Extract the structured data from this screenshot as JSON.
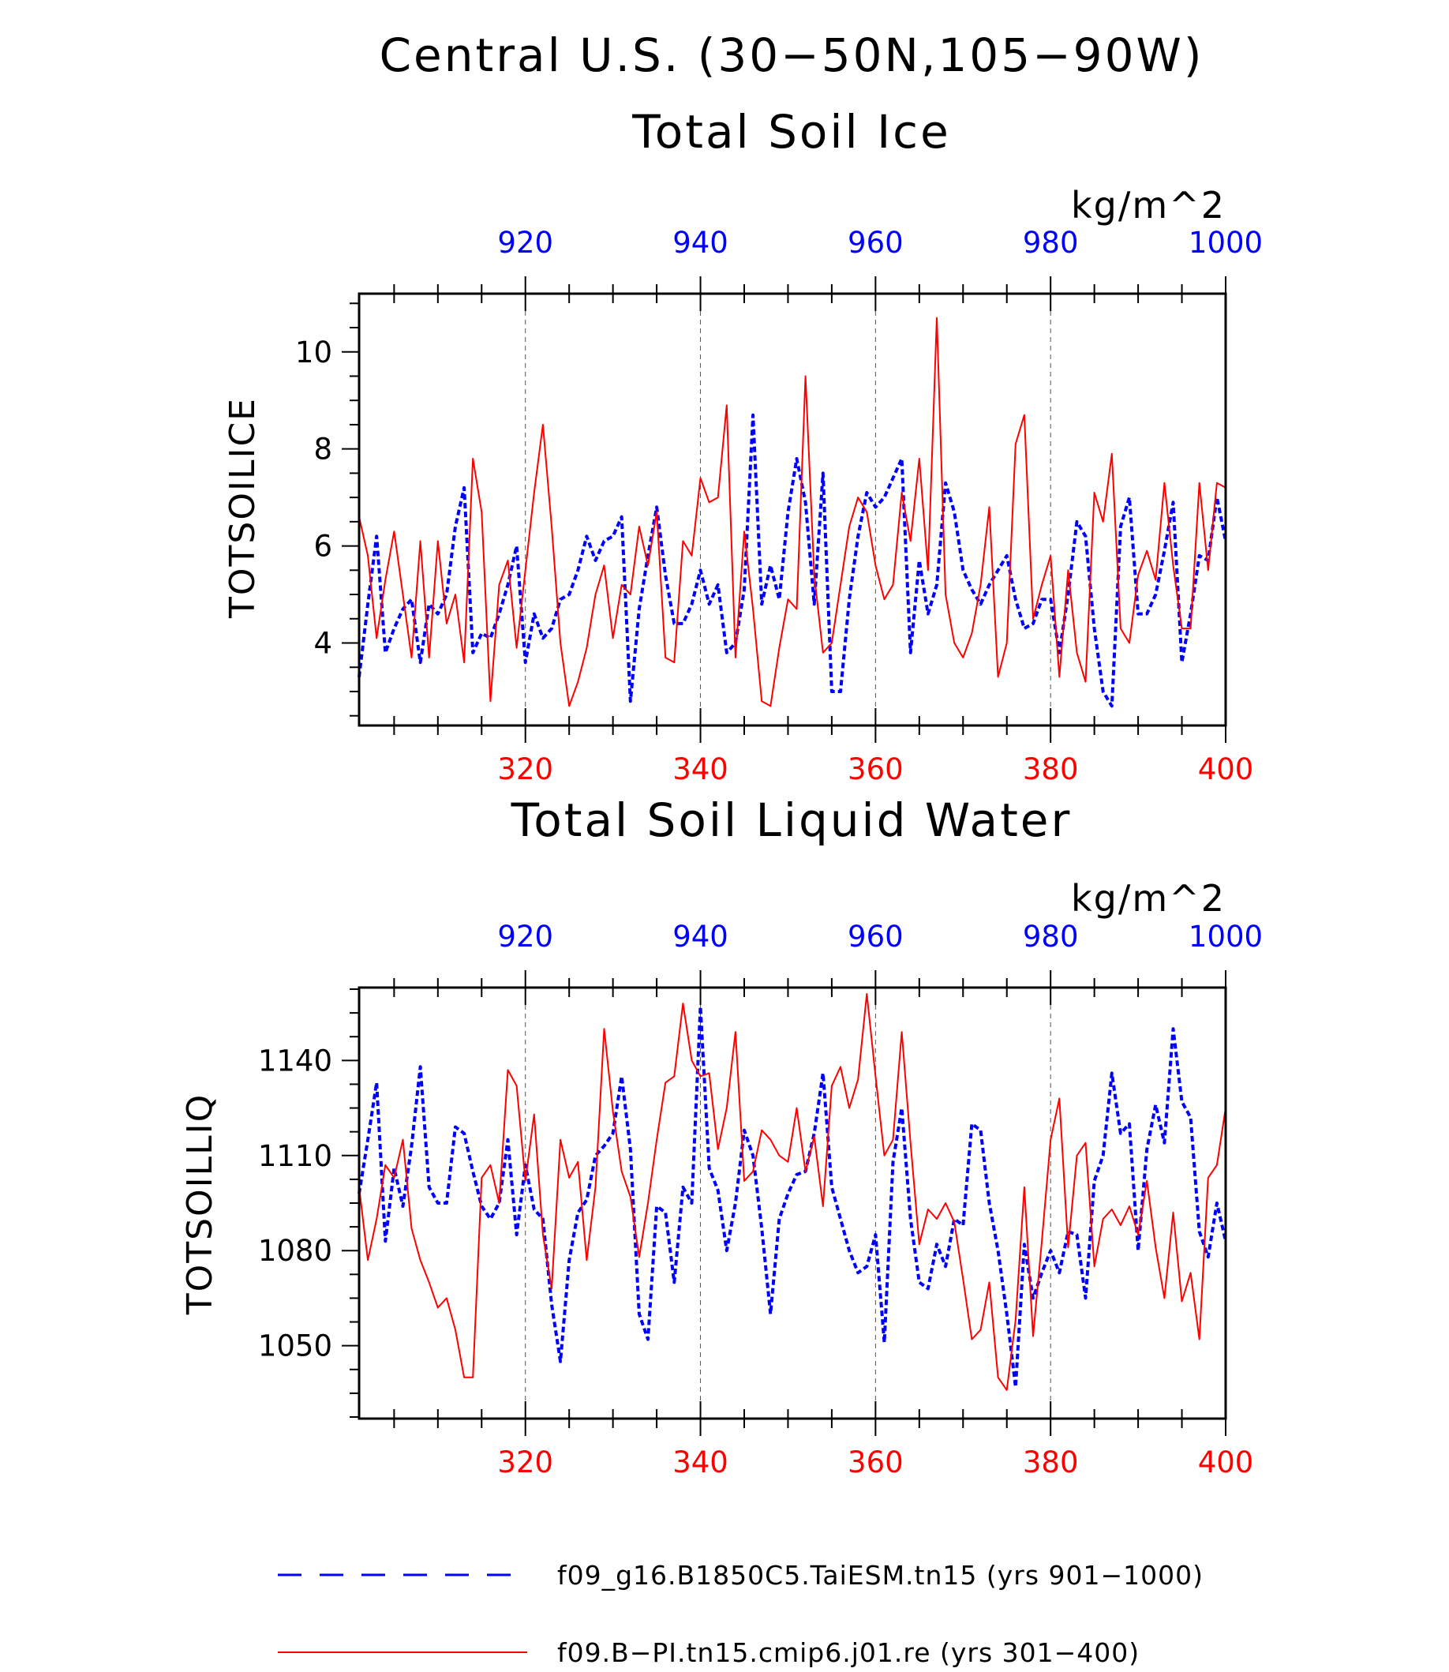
{
  "figure": {
    "title_line1": "Central U.S. (30−50N,105−90W)"
  },
  "legend": {
    "items": [
      {
        "label": "f09_g16.B1850C5.TaiESM.tn15 (yrs 901−1000)",
        "color": "#0000ff",
        "style": "dashed"
      },
      {
        "label": "f09.B−PI.tn15.cmip6.j01.re (yrs 301−400)",
        "color": "#ff0000",
        "style": "solid"
      }
    ]
  },
  "chart_data": [
    {
      "type": "line",
      "title": "Total Soil Ice",
      "ylabel": "TOTSOILICE",
      "units": "kg/m^2",
      "ylim": [
        2.3,
        11.2
      ],
      "yticks": [
        4,
        6,
        8,
        10
      ],
      "x_bottom": {
        "range": [
          301,
          400
        ],
        "ticks": [
          320,
          340,
          360,
          380,
          400
        ],
        "color": "#ff0000"
      },
      "x_top": {
        "range": [
          901,
          1000
        ],
        "ticks": [
          920,
          940,
          960,
          980,
          1000
        ],
        "color": "#0000ff"
      },
      "grid": "vertical dashed",
      "series": [
        {
          "axis": "top",
          "color": "#0000ff",
          "style": "dashed",
          "values": [
            3.3,
            4.8,
            6.2,
            3.8,
            4.3,
            4.7,
            4.9,
            3.6,
            4.8,
            4.6,
            5.0,
            6.4,
            7.2,
            3.8,
            4.2,
            4.1,
            4.6,
            5.2,
            6.0,
            3.6,
            4.6,
            4.1,
            4.3,
            4.9,
            5.0,
            5.5,
            6.2,
            5.7,
            6.1,
            6.2,
            6.6,
            2.8,
            4.7,
            5.8,
            6.8,
            5.4,
            4.4,
            4.4,
            4.8,
            5.5,
            4.8,
            5.2,
            3.8,
            4.0,
            5.1,
            8.7,
            4.8,
            5.6,
            4.9,
            6.7,
            7.8,
            6.9,
            4.8,
            7.5,
            3.0,
            3.0,
            4.9,
            6.2,
            7.1,
            6.8,
            7.0,
            7.4,
            7.8,
            3.8,
            5.7,
            4.6,
            5.2,
            7.3,
            6.7,
            5.5,
            5.1,
            4.8,
            5.2,
            5.5,
            5.8,
            4.9,
            4.3,
            4.4,
            4.9,
            4.9,
            3.8,
            5.0,
            6.5,
            6.2,
            4.3,
            3.0,
            2.7,
            6.4,
            7.0,
            4.6,
            4.6,
            5.0,
            5.9,
            6.9,
            3.6,
            4.6,
            5.8,
            5.7,
            7.0,
            6.1
          ]
        },
        {
          "axis": "bottom",
          "color": "#ff0000",
          "style": "solid",
          "values": [
            6.6,
            5.8,
            4.1,
            5.3,
            6.3,
            5.0,
            3.7,
            6.1,
            3.7,
            6.1,
            4.4,
            5.0,
            3.6,
            7.8,
            6.7,
            2.8,
            5.2,
            5.7,
            3.9,
            5.5,
            7.1,
            8.5,
            6.4,
            4.0,
            2.7,
            3.2,
            3.9,
            5.0,
            5.6,
            4.1,
            5.2,
            5.0,
            6.4,
            5.6,
            6.7,
            3.7,
            3.6,
            6.1,
            5.8,
            7.4,
            6.9,
            7.0,
            8.9,
            3.7,
            6.3,
            4.7,
            2.8,
            2.7,
            3.9,
            4.9,
            4.7,
            9.5,
            5.4,
            3.8,
            4.0,
            5.2,
            6.4,
            7.0,
            6.7,
            5.6,
            4.9,
            5.2,
            7.1,
            6.1,
            7.8,
            5.5,
            10.7,
            5.0,
            4.0,
            3.7,
            4.2,
            5.2,
            6.8,
            3.3,
            4.0,
            8.1,
            8.7,
            4.5,
            5.2,
            5.8,
            3.3,
            5.5,
            3.8,
            3.2,
            7.1,
            6.5,
            7.9,
            4.3,
            4.0,
            5.4,
            5.9,
            5.3,
            7.3,
            5.6,
            4.3,
            4.3,
            7.3,
            5.5,
            7.3,
            7.2
          ]
        }
      ]
    },
    {
      "type": "line",
      "title": "Total Soil Liquid Water",
      "ylabel": "TOTSOILLIQ",
      "units": "kg/m^2",
      "ylim": [
        1027,
        1163
      ],
      "yticks": [
        1050,
        1080,
        1110,
        1140
      ],
      "x_bottom": {
        "range": [
          301,
          400
        ],
        "ticks": [
          320,
          340,
          360,
          380,
          400
        ],
        "color": "#ff0000"
      },
      "x_top": {
        "range": [
          901,
          1000
        ],
        "ticks": [
          920,
          940,
          960,
          980,
          1000
        ],
        "color": "#0000ff"
      },
      "grid": "vertical dashed",
      "series": [
        {
          "axis": "top",
          "color": "#0000ff",
          "style": "dashed",
          "values": [
            1098,
            1115,
            1133,
            1083,
            1106,
            1094,
            1113,
            1138,
            1100,
            1095,
            1095,
            1119,
            1117,
            1105,
            1094,
            1090,
            1095,
            1115,
            1085,
            1107,
            1093,
            1090,
            1063,
            1045,
            1077,
            1092,
            1096,
            1110,
            1113,
            1117,
            1135,
            1112,
            1060,
            1052,
            1094,
            1092,
            1070,
            1100,
            1095,
            1157,
            1106,
            1099,
            1080,
            1095,
            1118,
            1110,
            1087,
            1060,
            1090,
            1098,
            1104,
            1105,
            1117,
            1136,
            1100,
            1090,
            1080,
            1073,
            1075,
            1085,
            1051,
            1108,
            1125,
            1090,
            1070,
            1068,
            1082,
            1075,
            1090,
            1088,
            1120,
            1118,
            1095,
            1080,
            1060,
            1037,
            1082,
            1065,
            1073,
            1080,
            1073,
            1086,
            1085,
            1065,
            1102,
            1110,
            1136,
            1117,
            1120,
            1080,
            1112,
            1126,
            1114,
            1150,
            1127,
            1122,
            1086,
            1078,
            1095,
            1083
          ]
        },
        {
          "axis": "bottom",
          "color": "#ff0000",
          "style": "solid",
          "values": [
            1100,
            1077,
            1090,
            1107,
            1103,
            1115,
            1087,
            1077,
            1070,
            1062,
            1065,
            1055,
            1040,
            1040,
            1103,
            1107,
            1095,
            1137,
            1132,
            1102,
            1123,
            1085,
            1068,
            1115,
            1103,
            1108,
            1077,
            1100,
            1150,
            1124,
            1105,
            1097,
            1078,
            1095,
            1115,
            1133,
            1135,
            1158,
            1140,
            1135,
            1136,
            1112,
            1125,
            1149,
            1102,
            1105,
            1118,
            1115,
            1110,
            1108,
            1125,
            1105,
            1116,
            1094,
            1132,
            1138,
            1125,
            1134,
            1161,
            1135,
            1110,
            1115,
            1149,
            1114,
            1082,
            1093,
            1090,
            1095,
            1089,
            1071,
            1052,
            1055,
            1070,
            1040,
            1036,
            1058,
            1100,
            1053,
            1083,
            1115,
            1128,
            1081,
            1110,
            1114,
            1075,
            1090,
            1093,
            1088,
            1094,
            1085,
            1102,
            1081,
            1065,
            1092,
            1064,
            1073,
            1052,
            1103,
            1107,
            1125
          ]
        }
      ]
    }
  ]
}
